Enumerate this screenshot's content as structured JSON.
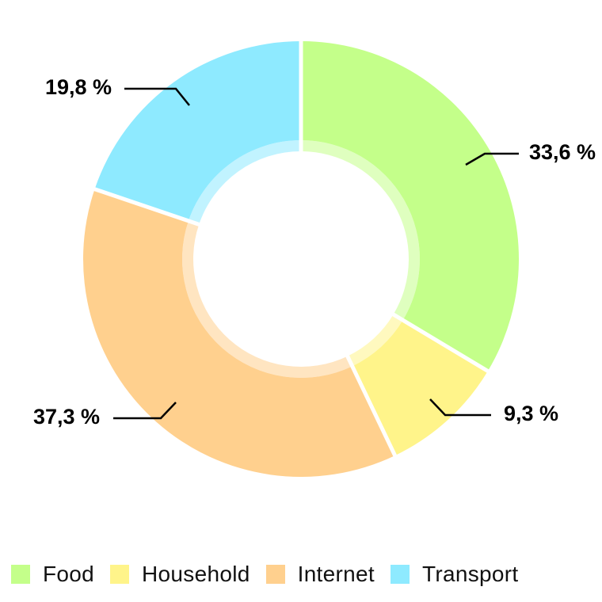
{
  "chart_data": {
    "type": "pie",
    "variant": "donut",
    "slices": [
      {
        "name": "Food",
        "value": 33.6,
        "label": "33,6 %",
        "color": "#c4ff8a"
      },
      {
        "name": "Household",
        "value": 9.3,
        "label": "9,3 %",
        "color": "#fff48a"
      },
      {
        "name": "Internet",
        "value": 37.3,
        "label": "37,3 %",
        "color": "#ffd08e"
      },
      {
        "name": "Transport",
        "value": 19.8,
        "label": "19,8 %",
        "color": "#8eeaff"
      }
    ],
    "legend": {
      "placement": "bottom",
      "items": [
        "Food",
        "Household",
        "Internet",
        "Transport"
      ]
    }
  }
}
